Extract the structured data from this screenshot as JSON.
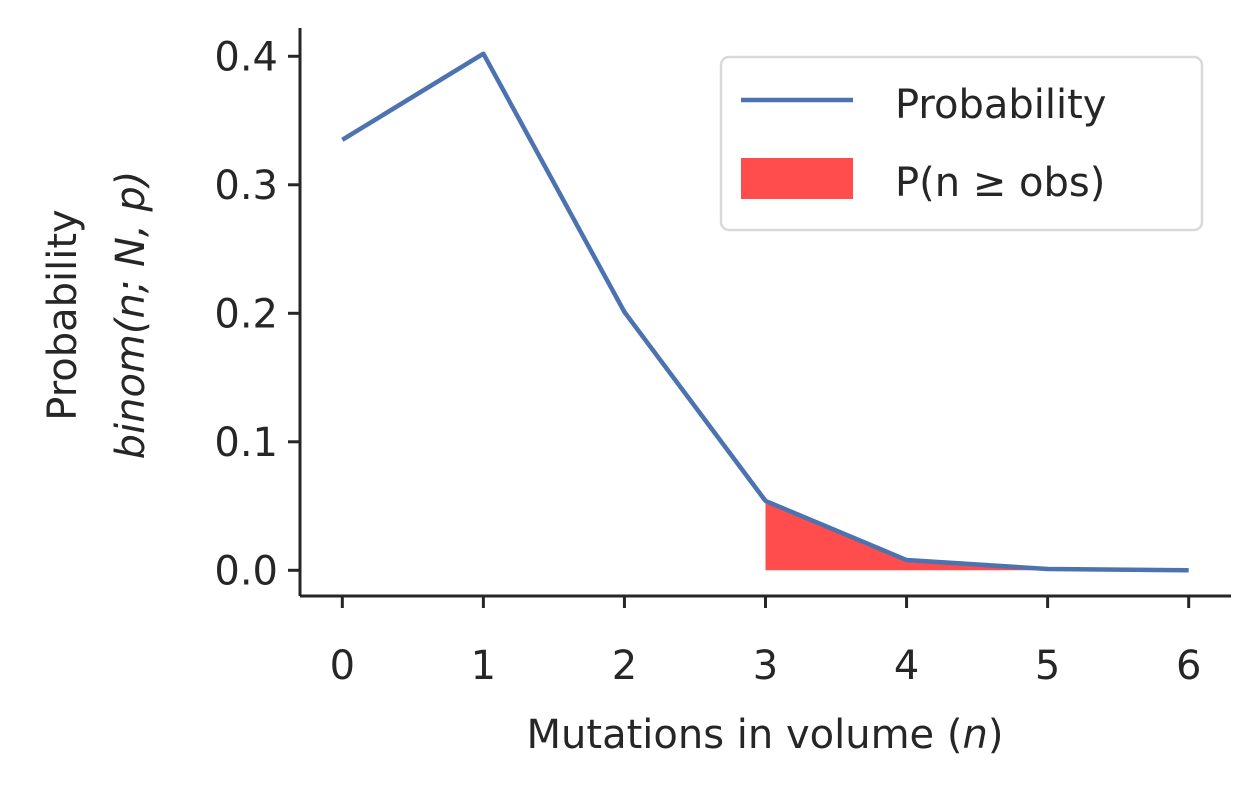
{
  "chart_data": {
    "type": "line",
    "x": [
      0,
      1,
      2,
      3,
      4,
      5,
      6
    ],
    "series": [
      {
        "name": "Probability",
        "values": [
          0.335,
          0.402,
          0.201,
          0.054,
          0.008,
          0.001,
          0.0
        ],
        "color": "#4c72b0"
      }
    ],
    "shaded_region": {
      "name": "P(n ≥ obs)",
      "x_start": 3,
      "x_end": 6,
      "color": "#ff4c4c"
    },
    "xlabel_text": "Mutations in volume (",
    "xlabel_var": "n",
    "xlabel_close": ")",
    "ylabel_line1": "Probability",
    "ylabel_line2": "binom(n; N, p)",
    "xticks": [
      "0",
      "1",
      "2",
      "3",
      "4",
      "5",
      "6"
    ],
    "yticks": [
      "0.0",
      "0.1",
      "0.2",
      "0.3",
      "0.4"
    ],
    "xlim": [
      -0.3,
      6.3
    ],
    "ylim": [
      -0.02,
      0.422
    ],
    "legend_placement": "top-right",
    "grid": false
  }
}
